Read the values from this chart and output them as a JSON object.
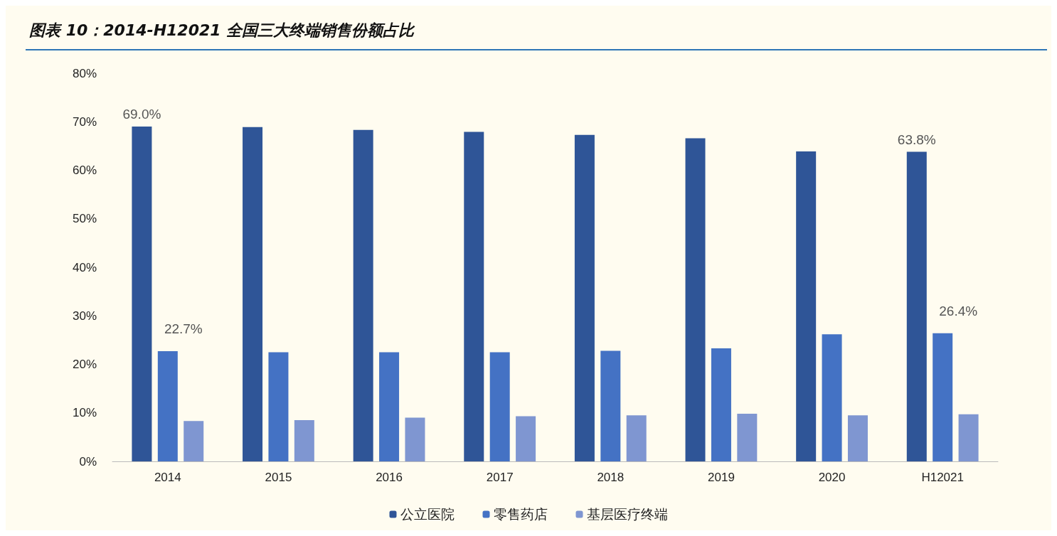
{
  "chart_data": {
    "type": "bar",
    "title": "图表 10：2014-H12021 全国三大终端销售份额占比",
    "categories": [
      "2014",
      "2015",
      "2016",
      "2017",
      "2018",
      "2019",
      "2020",
      "H12021"
    ],
    "series": [
      {
        "name": "公立医院",
        "color": "#2f5597",
        "values": [
          69.0,
          68.9,
          68.3,
          67.9,
          67.3,
          66.6,
          63.9,
          63.8
        ],
        "value_labels": [
          "69.0%",
          null,
          null,
          null,
          null,
          null,
          null,
          "63.8%"
        ]
      },
      {
        "name": "零售药店",
        "color": "#4472c4",
        "values": [
          22.7,
          22.5,
          22.5,
          22.5,
          22.8,
          23.3,
          26.2,
          26.4
        ],
        "value_labels": [
          "22.7%",
          null,
          null,
          null,
          null,
          null,
          null,
          "26.4%"
        ]
      },
      {
        "name": "基层医疗终端",
        "color": "#7f96d1",
        "values": [
          8.3,
          8.5,
          9.0,
          9.3,
          9.5,
          9.8,
          9.5,
          9.7
        ]
      }
    ],
    "ylim": [
      0,
      80
    ],
    "yticks": [
      {
        "value": 0,
        "label": "0%"
      },
      {
        "value": 10,
        "label": "10%"
      },
      {
        "value": 20,
        "label": "20%"
      },
      {
        "value": 30,
        "label": "30%"
      },
      {
        "value": 40,
        "label": "40%"
      },
      {
        "value": 50,
        "label": "50%"
      },
      {
        "value": 60,
        "label": "60%"
      },
      {
        "value": 70,
        "label": "70%"
      },
      {
        "value": 80,
        "label": "80%"
      }
    ],
    "grid": false,
    "legend": "bottom"
  }
}
